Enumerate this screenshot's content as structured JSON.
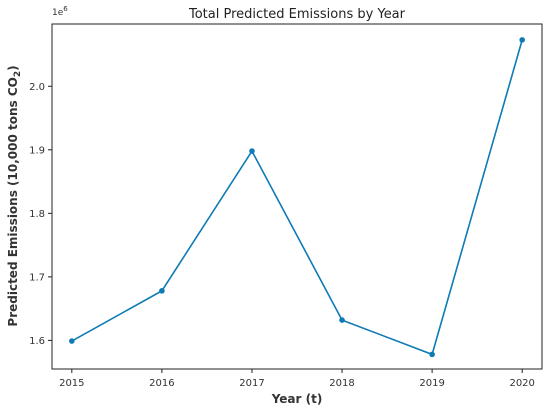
{
  "chart_data": {
    "type": "line",
    "title": "Total Predicted Emissions by Year",
    "xlabel": "Year (t)",
    "ylabel": {
      "main": "Predicted Emissions  (10,000 tons CO",
      "sub": "2",
      "end": ")"
    },
    "y_offset_label": {
      "base": "1e",
      "exp": "6"
    },
    "x": [
      2015,
      2016,
      2017,
      2018,
      2019,
      2020
    ],
    "x_tick_labels": [
      "2015",
      "2016",
      "2017",
      "2018",
      "2019",
      "2020"
    ],
    "series": [
      {
        "values": [
          1599000,
          1678000,
          1898000,
          1632000,
          1578000,
          2073000
        ],
        "color": "#0e7bb5"
      }
    ],
    "y_ticks": [
      1.6,
      1.7,
      1.8,
      1.9,
      2.0
    ],
    "y_tick_labels": [
      "1.6",
      "1.7",
      "1.8",
      "1.9",
      "2.0"
    ],
    "xlim": [
      2014.78,
      2020.22
    ],
    "ylim": [
      1555000,
      2098000
    ],
    "grid": false,
    "legend": "none"
  }
}
